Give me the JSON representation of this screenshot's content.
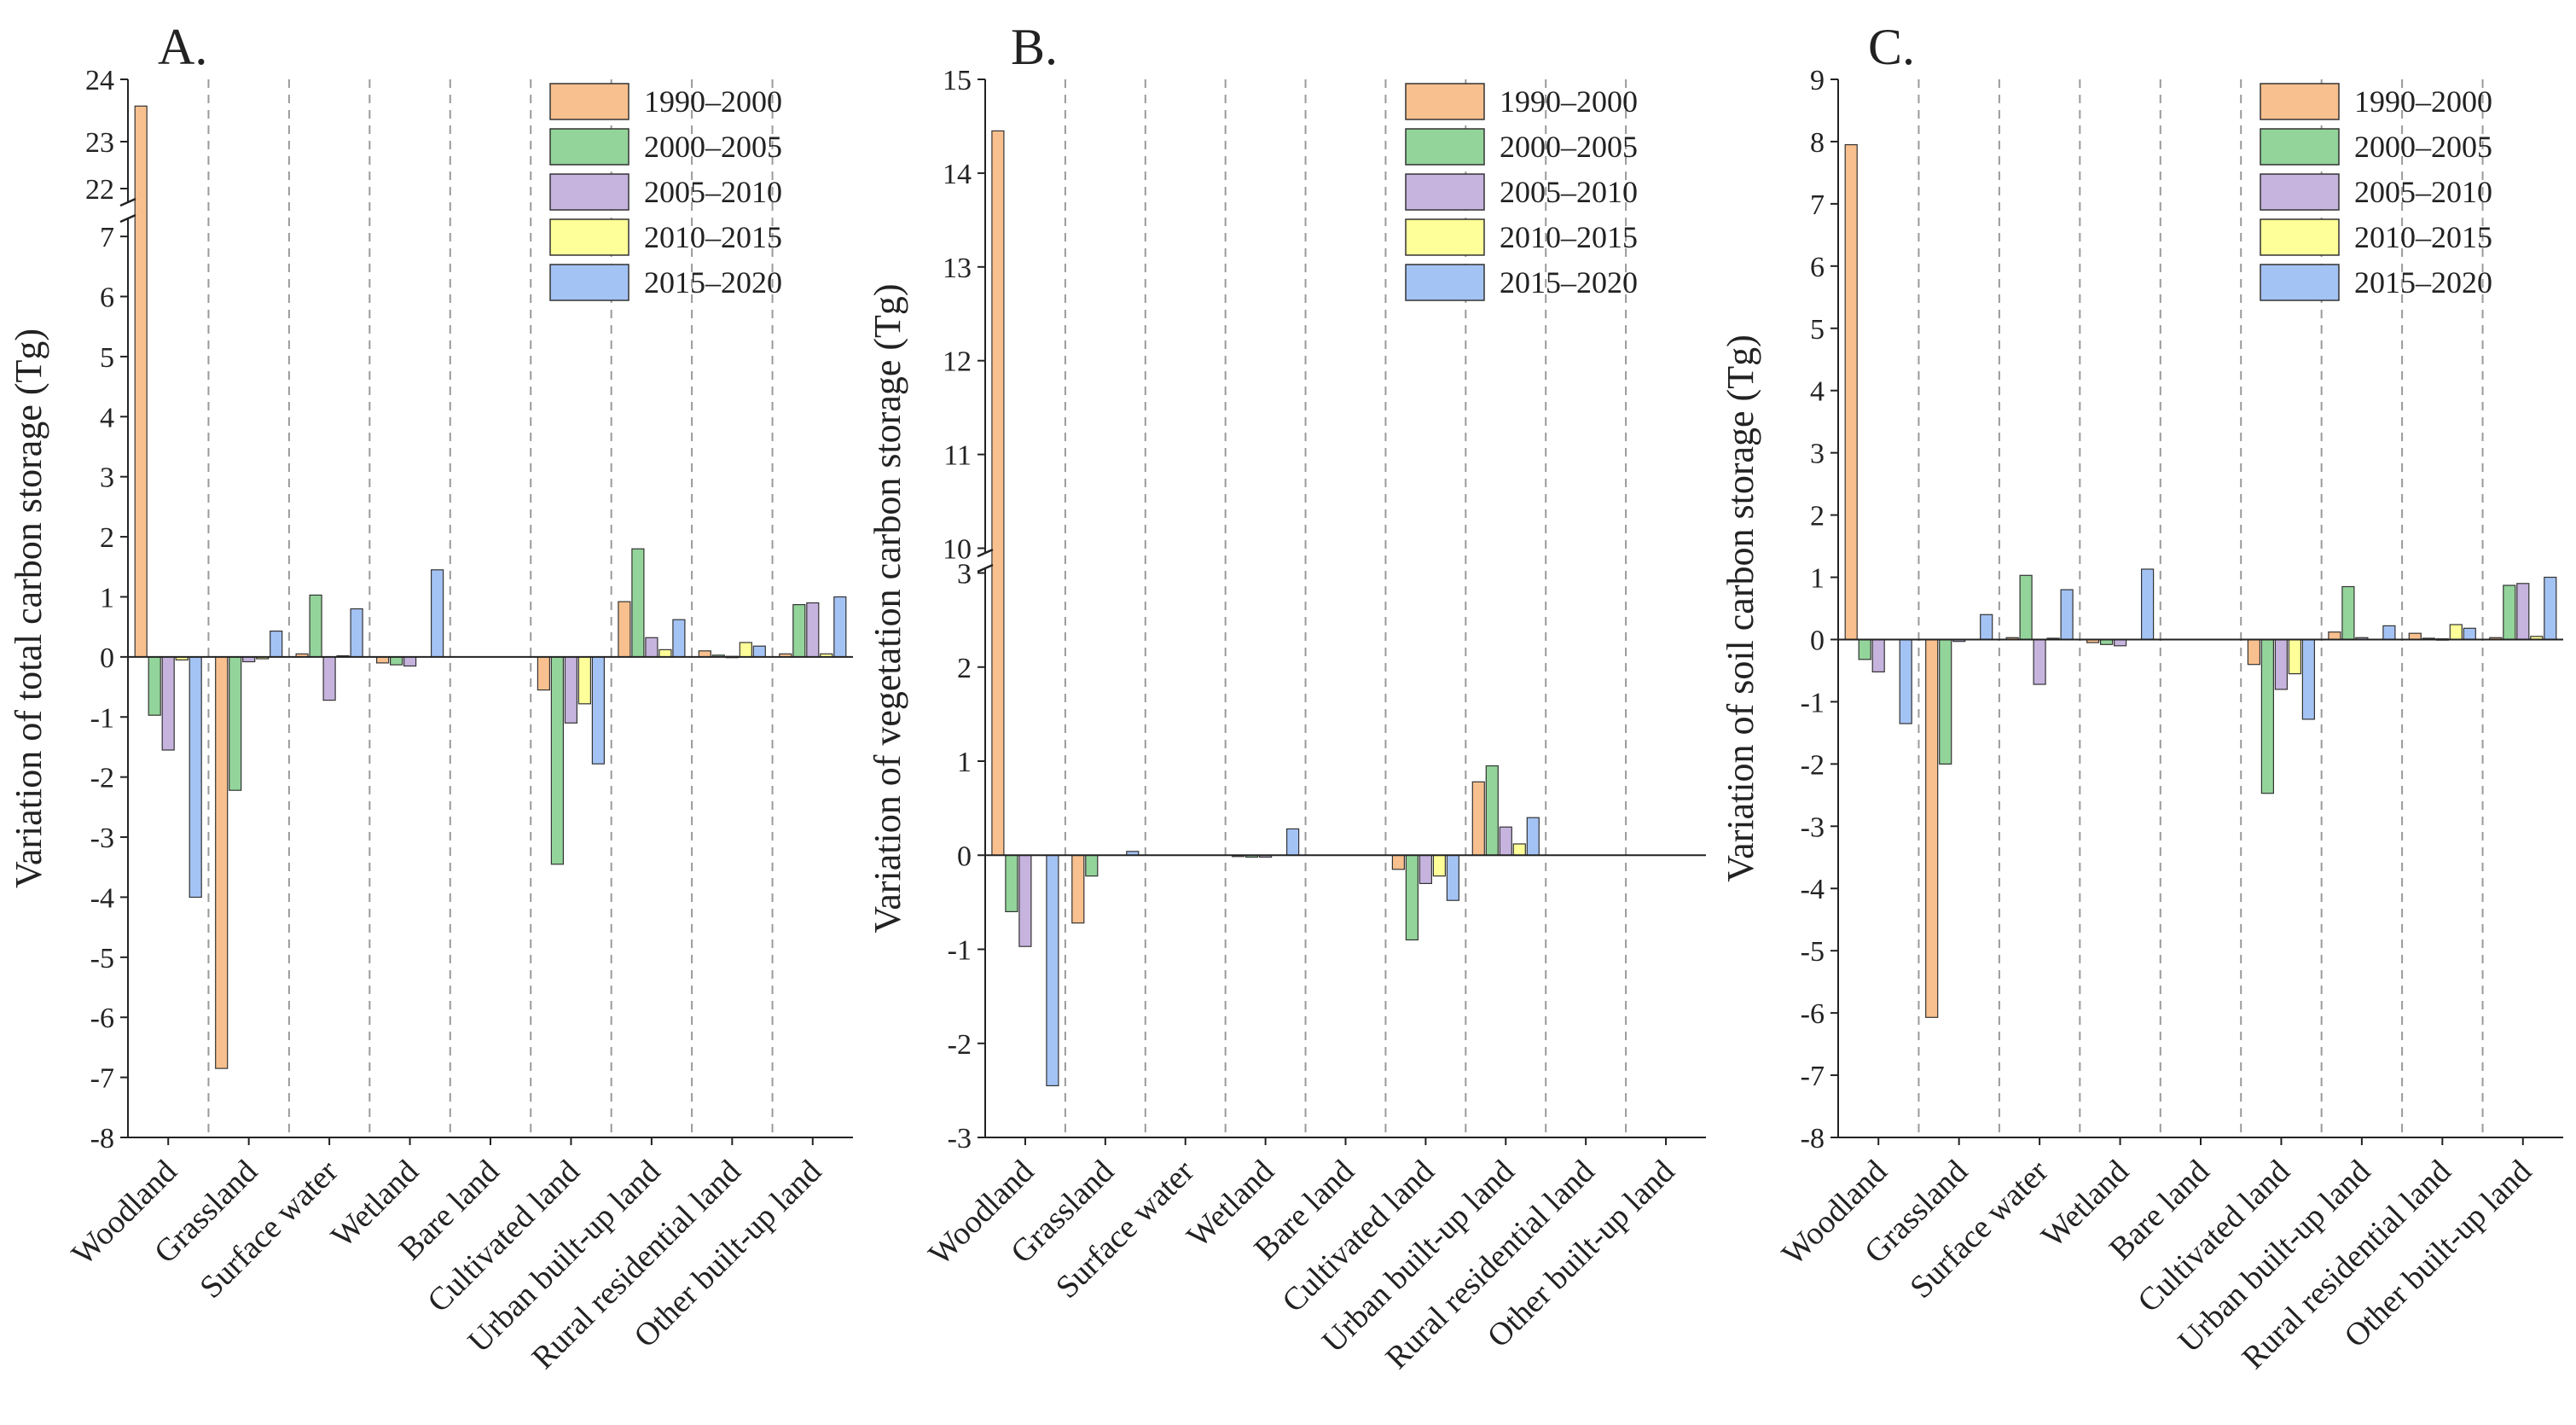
{
  "legend": [
    "1990–2000",
    "2000–2005",
    "2005–2010",
    "2010–2015",
    "2015–2020"
  ],
  "colors": [
    "#F8C08E",
    "#93D49A",
    "#C6B3DE",
    "#FFFF99",
    "#A4C3F5"
  ],
  "categories": [
    "Woodland",
    "Grassland",
    "Surface water",
    "Wetland",
    "Bare land",
    "Cultivated land",
    "Urban built-up land",
    "Rural residential land",
    "Other built-up land"
  ],
  "chart_data": [
    {
      "type": "bar",
      "panel": "A.",
      "ylabel": "Variation of total carbon storage (Tg)",
      "ylim": [
        -8,
        24
      ],
      "axis_break": [
        7.3,
        21.7
      ],
      "lower_ticks": [
        "-8",
        "-7",
        "-6",
        "-5",
        "-4",
        "-3",
        "-2",
        "-1",
        "0",
        "1",
        "2",
        "3",
        "4",
        "5",
        "6",
        "7"
      ],
      "upper_ticks": [
        "22",
        "23",
        "24"
      ],
      "series": [
        {
          "name": "1990–2000",
          "values": [
            23.5,
            -6.85,
            0.05,
            -0.1,
            0,
            -0.55,
            0.92,
            0.1,
            0.05
          ]
        },
        {
          "name": "2000–2005",
          "values": [
            -0.97,
            -2.22,
            1.03,
            -0.13,
            0,
            -3.45,
            1.8,
            0.03,
            0.87
          ]
        },
        {
          "name": "2005–2010",
          "values": [
            -1.55,
            -0.08,
            -0.72,
            -0.15,
            0,
            -1.1,
            0.32,
            0.01,
            0.9
          ]
        },
        {
          "name": "2010–2015",
          "values": [
            -0.05,
            -0.03,
            0.02,
            0,
            0,
            -0.78,
            0.12,
            0.24,
            0.05
          ]
        },
        {
          "name": "2015–2020",
          "values": [
            -4.0,
            0.43,
            0.8,
            1.45,
            0,
            -1.78,
            0.62,
            0.18,
            1.0
          ]
        }
      ]
    },
    {
      "type": "bar",
      "panel": "B.",
      "ylabel": "Variation of vegetation carbon storage (Tg)",
      "ylim": [
        -3,
        15
      ],
      "axis_break": [
        3.05,
        9.95
      ],
      "lower_ticks": [
        "-3",
        "-2",
        "-1",
        "0",
        "1",
        "2",
        "3"
      ],
      "upper_ticks": [
        "10",
        "11",
        "12",
        "13",
        "14",
        "15"
      ],
      "series": [
        {
          "name": "1990–2000",
          "values": [
            14.45,
            -0.72,
            0,
            -0.01,
            0,
            -0.15,
            0.78,
            0,
            0
          ]
        },
        {
          "name": "2000–2005",
          "values": [
            -0.6,
            -0.22,
            0,
            -0.02,
            0,
            -0.9,
            0.95,
            0,
            0
          ]
        },
        {
          "name": "2005–2010",
          "values": [
            -0.97,
            0,
            0,
            -0.02,
            0,
            -0.3,
            0.3,
            0,
            0
          ]
        },
        {
          "name": "2010–2015",
          "values": [
            0,
            0,
            0,
            0,
            0,
            -0.22,
            0.12,
            0,
            0
          ]
        },
        {
          "name": "2015–2020",
          "values": [
            -2.45,
            0.04,
            0,
            0.28,
            0,
            -0.48,
            0.4,
            0,
            0
          ]
        }
      ]
    },
    {
      "type": "bar",
      "panel": "C.",
      "ylabel": "Variation of soil carbon storage (Tg)",
      "ylim": [
        -8,
        9
      ],
      "lower_ticks": [
        "-8",
        "-7",
        "-6",
        "-5",
        "-4",
        "-3",
        "-2",
        "-1",
        "0",
        "1",
        "2",
        "3",
        "4",
        "5",
        "6",
        "7",
        "8",
        "9"
      ],
      "series": [
        {
          "name": "1990–2000",
          "values": [
            7.95,
            -6.07,
            0.03,
            -0.05,
            0,
            -0.4,
            0.12,
            0.1,
            0.03
          ]
        },
        {
          "name": "2000–2005",
          "values": [
            -0.32,
            -2.0,
            1.03,
            -0.08,
            0,
            -2.47,
            0.85,
            0.02,
            0.87
          ]
        },
        {
          "name": "2005–2010",
          "values": [
            -0.52,
            -0.03,
            -0.72,
            -0.1,
            0,
            -0.8,
            0.03,
            0.01,
            0.9
          ]
        },
        {
          "name": "2010–2015",
          "values": [
            0,
            0,
            0.02,
            0,
            0,
            -0.55,
            0,
            0.24,
            0.05
          ]
        },
        {
          "name": "2015–2020",
          "values": [
            -1.35,
            0.4,
            0.8,
            1.13,
            0,
            -1.28,
            0.22,
            0.18,
            1.0
          ]
        }
      ]
    }
  ]
}
